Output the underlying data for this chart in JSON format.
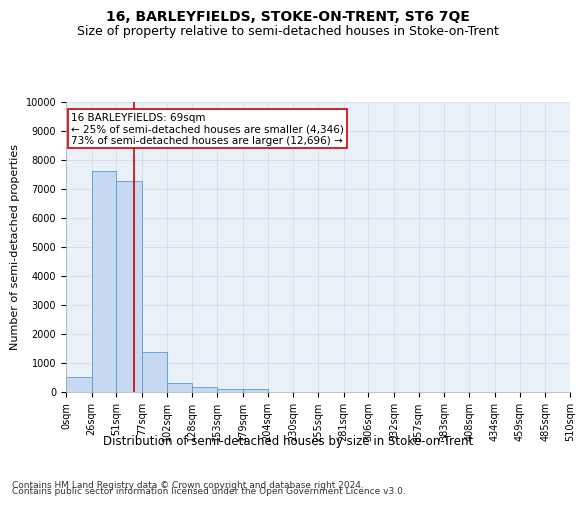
{
  "title": "16, BARLEYFIELDS, STOKE-ON-TRENT, ST6 7QE",
  "subtitle": "Size of property relative to semi-detached houses in Stoke-on-Trent",
  "xlabel": "Distribution of semi-detached houses by size in Stoke-on-Trent",
  "ylabel": "Number of semi-detached properties",
  "footer_line1": "Contains HM Land Registry data © Crown copyright and database right 2024.",
  "footer_line2": "Contains public sector information licensed under the Open Government Licence v3.0.",
  "bin_edges": [
    0,
    26,
    51,
    77,
    102,
    128,
    153,
    179,
    204,
    230,
    255,
    281,
    306,
    332,
    357,
    383,
    408,
    434,
    459,
    485,
    510
  ],
  "bar_heights": [
    530,
    7620,
    7280,
    1370,
    320,
    165,
    120,
    100,
    0,
    0,
    0,
    0,
    0,
    0,
    0,
    0,
    0,
    0,
    0,
    0
  ],
  "bar_color": "#c6d9f0",
  "bar_edge_color": "#5b9bd5",
  "vline_x": 69,
  "vline_color": "#cc0000",
  "annotation_line1": "16 BARLEYFIELDS: 69sqm",
  "annotation_line2": "← 25% of semi-detached houses are smaller (4,346)",
  "annotation_line3": "73% of semi-detached houses are larger (12,696) →",
  "annotation_box_color": "#ffffff",
  "annotation_box_edge": "#cc0000",
  "ylim": [
    0,
    10000
  ],
  "yticks": [
    0,
    1000,
    2000,
    3000,
    4000,
    5000,
    6000,
    7000,
    8000,
    9000,
    10000
  ],
  "tick_labels": [
    "0sqm",
    "26sqm",
    "51sqm",
    "77sqm",
    "102sqm",
    "128sqm",
    "153sqm",
    "179sqm",
    "204sqm",
    "230sqm",
    "255sqm",
    "281sqm",
    "306sqm",
    "332sqm",
    "357sqm",
    "383sqm",
    "408sqm",
    "434sqm",
    "459sqm",
    "485sqm",
    "510sqm"
  ],
  "grid_color": "#d0d8e8",
  "background_color": "#eaf0f8",
  "title_fontsize": 10,
  "subtitle_fontsize": 9,
  "xlabel_fontsize": 8.5,
  "ylabel_fontsize": 8,
  "tick_fontsize": 7,
  "annotation_fontsize": 7.5,
  "footer_fontsize": 6.5
}
